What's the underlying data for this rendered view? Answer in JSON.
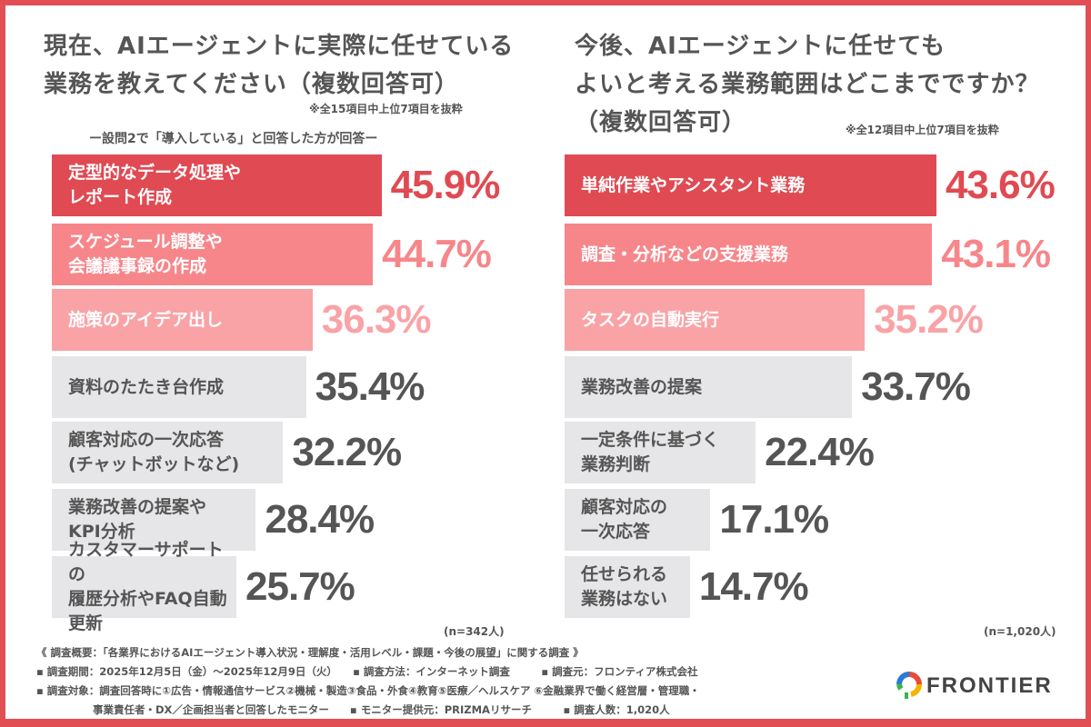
{
  "colors": {
    "border": "#e14f55",
    "rank1": "#e04a52",
    "rank2": "#f7868b",
    "rank3": "#f9a3a7",
    "other": "#e6e6e8",
    "other_text": "#555555"
  },
  "chart_data": [
    {
      "type": "bar",
      "orientation": "horizontal",
      "title": "現在、AIエージェントに実際に任せている\n業務を教えてください（複数回答可）",
      "note": "※全15項目中上位7項目を抜粋",
      "subtitle": "ー設問2で「導入している」と回答した方が回答ー",
      "categories": [
        "定型的なデータ処理や\nレポート作成",
        "スケジュール調整や\n会議議事録の作成",
        "施策のアイデア出し",
        "資料のたたき台作成",
        "顧客対応の一次応答\n(チャットボットなど)",
        "業務改善の提案や\nKPI分析",
        "カスタマーサポートの\n履歴分析やFAQ自動更新"
      ],
      "values": [
        45.9,
        44.7,
        36.3,
        35.4,
        32.2,
        28.4,
        25.7
      ],
      "labels": [
        "45.9%",
        "44.7%",
        "36.3%",
        "35.4%",
        "32.2%",
        "28.4%",
        "25.7%"
      ],
      "unit": "%",
      "n": "(n=342人)"
    },
    {
      "type": "bar",
      "orientation": "horizontal",
      "title": "今後、AIエージェントに任せても\nよいと考える業務範囲はどこまでですか？\n（複数回答可）",
      "note": "※全12項目中上位7項目を抜粋",
      "categories": [
        "単純作業やアシスタント業務",
        "調査・分析などの支援業務",
        "タスクの自動実行",
        "業務改善の提案",
        "一定条件に基づく\n業務判断",
        "顧客対応の\n一次応答",
        "任せられる\n業務はない"
      ],
      "values": [
        43.6,
        43.1,
        35.2,
        33.7,
        22.4,
        17.1,
        14.7
      ],
      "labels": [
        "43.6%",
        "43.1%",
        "35.2%",
        "33.7%",
        "22.4%",
        "17.1%",
        "14.7%"
      ],
      "unit": "%",
      "n": "(n=1,020人)"
    }
  ],
  "footer": {
    "line1": "《 調査概要：「各業界におけるAIエージェント導入状況・理解度・活用レベル・課題・今後の展望」に関する調査 》",
    "line2": "▪ 調査期間：2025年12月5日（金）～2025年12月9日（火）　　▪ 調査方法：インターネット調査　　　▪ 調査元：フロンティア株式会社",
    "line3": "▪ 調査対象：調査回答時に①広告・情報通信サービス②機械・製造③食品・外食④教育⑤医療／ヘルスケア ⑥金融業界で働く経営層・管理職・",
    "line4": "事業責任者・DX／企画担当者と回答したモニター　　▪ モニター提供元：PRIZMAリサーチ　　　▪ 調査人数：1,020人"
  },
  "logo": {
    "text": "FRONTIER"
  }
}
